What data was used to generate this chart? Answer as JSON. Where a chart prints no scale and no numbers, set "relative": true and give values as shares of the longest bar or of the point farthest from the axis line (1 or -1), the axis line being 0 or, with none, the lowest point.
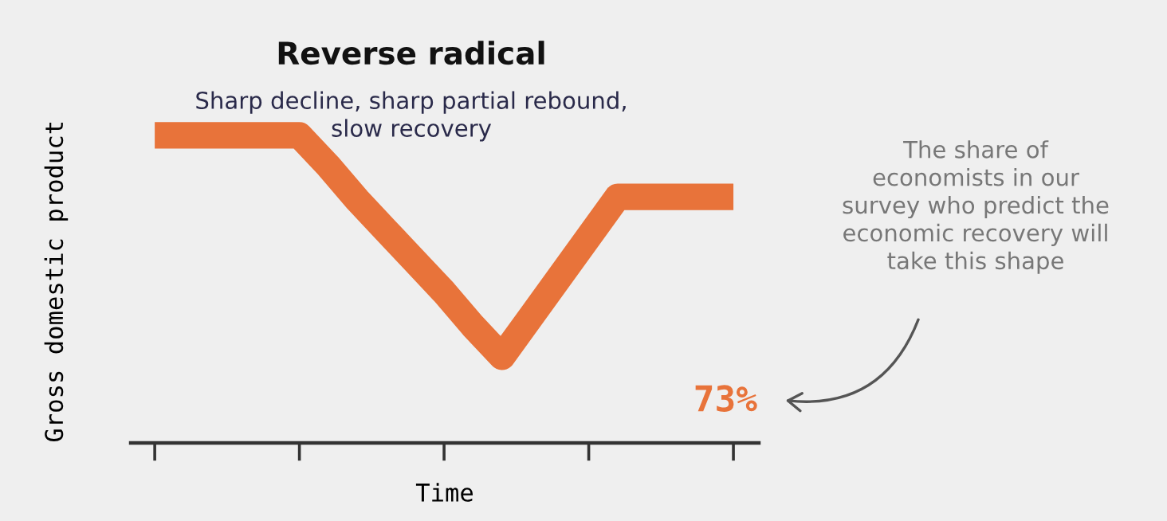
{
  "chart_data": {
    "type": "line",
    "title": "Reverse radical",
    "subtitle": "Sharp decline, sharp partial rebound,\nslow recovery",
    "xlabel": "Time",
    "ylabel": "Gross domestic product",
    "relative": true,
    "tick_labels": false,
    "grid": false,
    "legend": false,
    "marker": "none",
    "line_style": "solid",
    "categories": [
      null,
      null,
      null,
      null,
      null,
      null,
      null,
      null,
      null,
      null,
      null,
      null,
      null,
      null,
      null,
      null,
      null,
      null,
      null,
      null,
      null
    ],
    "series": [
      {
        "color": "#e8733a",
        "values": [
          1,
          1,
          1,
          1,
          1,
          1,
          0.9,
          0.79,
          0.69,
          0.59,
          0.49,
          0.38,
          0.28,
          0.41,
          0.54,
          0.67,
          0.8,
          0.8,
          0.8,
          0.8,
          0.8
        ]
      }
    ],
    "annotations": [
      "73%",
      "The share of\neconomists in our\nsurvey who predict the\neconomic recovery will\ntake this shape"
    ]
  }
}
